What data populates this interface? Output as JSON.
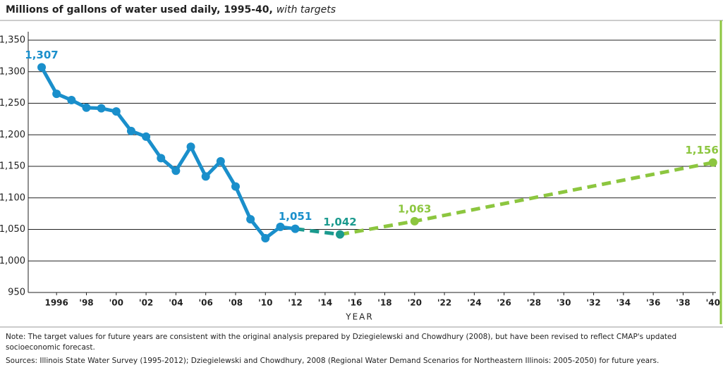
{
  "chart_data": {
    "type": "line",
    "title": "Millions of gallons of water used daily, 1995-40,",
    "subtitle": "with targets",
    "xlabel": "YEAR",
    "xlim": [
      1994.1,
      2040.2
    ],
    "ylim": [
      950,
      1350
    ],
    "xticks": [
      1996,
      {
        "value": 1998,
        "label": "'98"
      },
      {
        "value": 2000,
        "label": "'00"
      },
      {
        "value": 2002,
        "label": "'02"
      },
      {
        "value": 2004,
        "label": "'04"
      },
      {
        "value": 2006,
        "label": "'06"
      },
      {
        "value": 2008,
        "label": "'08"
      },
      {
        "value": 2010,
        "label": "'10"
      },
      {
        "value": 2012,
        "label": "'12"
      },
      {
        "value": 2014,
        "label": "'14"
      },
      {
        "value": 2016,
        "label": "'16"
      },
      {
        "value": 2018,
        "label": "'18"
      },
      {
        "value": 2020,
        "label": "'20"
      },
      {
        "value": 2022,
        "label": "'22"
      },
      {
        "value": 2024,
        "label": "'24"
      },
      {
        "value": 2026,
        "label": "'26"
      },
      {
        "value": 2028,
        "label": "'28"
      },
      {
        "value": 2030,
        "label": "'30"
      },
      {
        "value": 2032,
        "label": "'32"
      },
      {
        "value": 2034,
        "label": "'34"
      },
      {
        "value": 2036,
        "label": "'36"
      },
      {
        "value": 2038,
        "label": "'38"
      },
      {
        "value": 2040,
        "label": "'40"
      }
    ],
    "yticks": [
      950,
      {
        "value": 1000,
        "label": "1,000"
      },
      {
        "value": 1050,
        "label": "1,050"
      },
      {
        "value": 1100,
        "label": "1,100"
      },
      {
        "value": 1150,
        "label": "1,150"
      },
      {
        "value": 1200,
        "label": "1,200"
      },
      {
        "value": 1250,
        "label": "1,250"
      },
      {
        "value": 1300,
        "label": "1,300"
      },
      {
        "value": 1350,
        "label": "1,350"
      }
    ],
    "grid": true,
    "series": [
      {
        "color": "#1a8fcb",
        "dashed": false,
        "markers": true,
        "x": [
          1995,
          1996,
          1997,
          1998,
          1999,
          2000,
          2001,
          2002,
          2003,
          2004,
          2005,
          2006,
          2007,
          2008,
          2009,
          2010,
          2011,
          2012
        ],
        "values": [
          1307,
          1265,
          1255,
          1243,
          1242,
          1237,
          1206,
          1197,
          1163,
          1143,
          1181,
          1134,
          1158,
          1118,
          1066,
          1036,
          1054,
          1051
        ],
        "value_labels": [
          "1,307",
          null,
          null,
          null,
          null,
          null,
          null,
          null,
          null,
          null,
          null,
          null,
          null,
          null,
          null,
          null,
          null,
          "1,051"
        ]
      },
      {
        "color": "#1b9a8e",
        "dashed": true,
        "markers": false,
        "x": [
          2012,
          2015
        ],
        "values": [
          1051,
          1042
        ],
        "value_labels": [
          null,
          "1,042"
        ]
      },
      {
        "color": "#8cc63f",
        "dashed": true,
        "markers": false,
        "x": [
          2015,
          2020,
          2040
        ],
        "values": [
          1042,
          1063,
          1156
        ],
        "value_labels": [
          null,
          "1,063",
          "1,156"
        ]
      }
    ],
    "notes": [
      "Note: The target values for future years are consistent with the original analysis prepared by Dziegielewski and Chowdhury (2008), but have been revised to reflect CMAP's updated",
      "socioeconomic forecast.",
      "Sources: Illinois State Water Survey (1995-2012); Dziegielewski and Chowdhury, 2008 (Regional Water Demand Scenarios for Northeastern Illinois: 2005-2050) for future years."
    ]
  }
}
